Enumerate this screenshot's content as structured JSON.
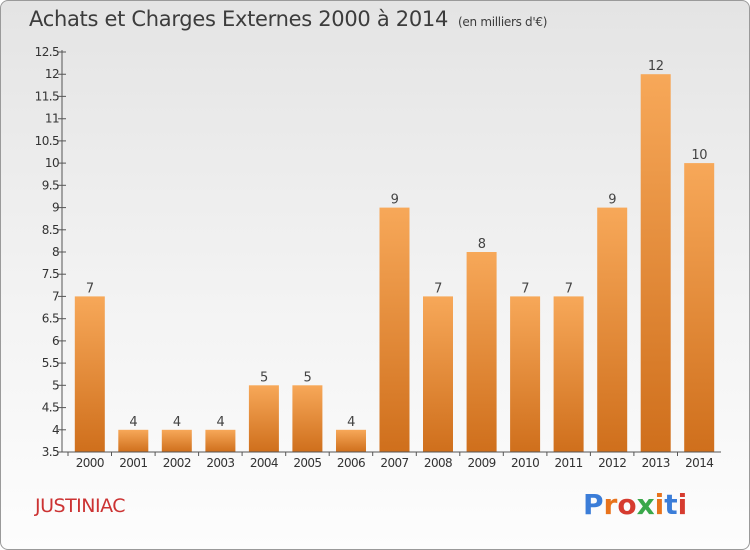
{
  "header": {
    "title": "Achats et Charges Externes 2000 à 2014",
    "subtitle": "(en milliers d'€)"
  },
  "footer": {
    "commune": "JUSTINIAC",
    "logo_text": "Proxiti",
    "logo_colors": [
      "#3b7dd8",
      "#e8731c",
      "#d63b2f",
      "#3aa84a",
      "#e8731c",
      "#3b7dd8",
      "#d63b2f"
    ]
  },
  "colors": {
    "bar_light": "#f7a859",
    "bar_dark": "#cf6f1c",
    "axis": "#555555"
  },
  "chart_data": {
    "type": "bar",
    "title": "Achats et Charges Externes 2000 à 2014",
    "subtitle": "(en milliers d'€)",
    "categories": [
      "2000",
      "2001",
      "2002",
      "2003",
      "2004",
      "2005",
      "2006",
      "2007",
      "2008",
      "2009",
      "2010",
      "2011",
      "2012",
      "2013",
      "2014"
    ],
    "values": [
      7,
      4,
      4,
      4,
      5,
      5,
      4,
      9,
      7,
      8,
      7,
      7,
      9,
      12,
      10
    ],
    "value_labels": [
      "7",
      "4",
      "4",
      "4",
      "5",
      "5",
      "4",
      "9",
      "7",
      "8",
      "7",
      "7",
      "9",
      "12",
      "10"
    ],
    "ylim": [
      3.5,
      12.5
    ],
    "yticks": [
      "3.5",
      "4",
      "4.5",
      "5",
      "5.5",
      "6",
      "6.5",
      "7",
      "7.5",
      "8",
      "8.5",
      "9",
      "9.5",
      "10",
      "10.5",
      "11",
      "11.5",
      "12",
      "12.5"
    ],
    "xlabel": "",
    "ylabel": "",
    "grid": false,
    "legend": "none"
  }
}
